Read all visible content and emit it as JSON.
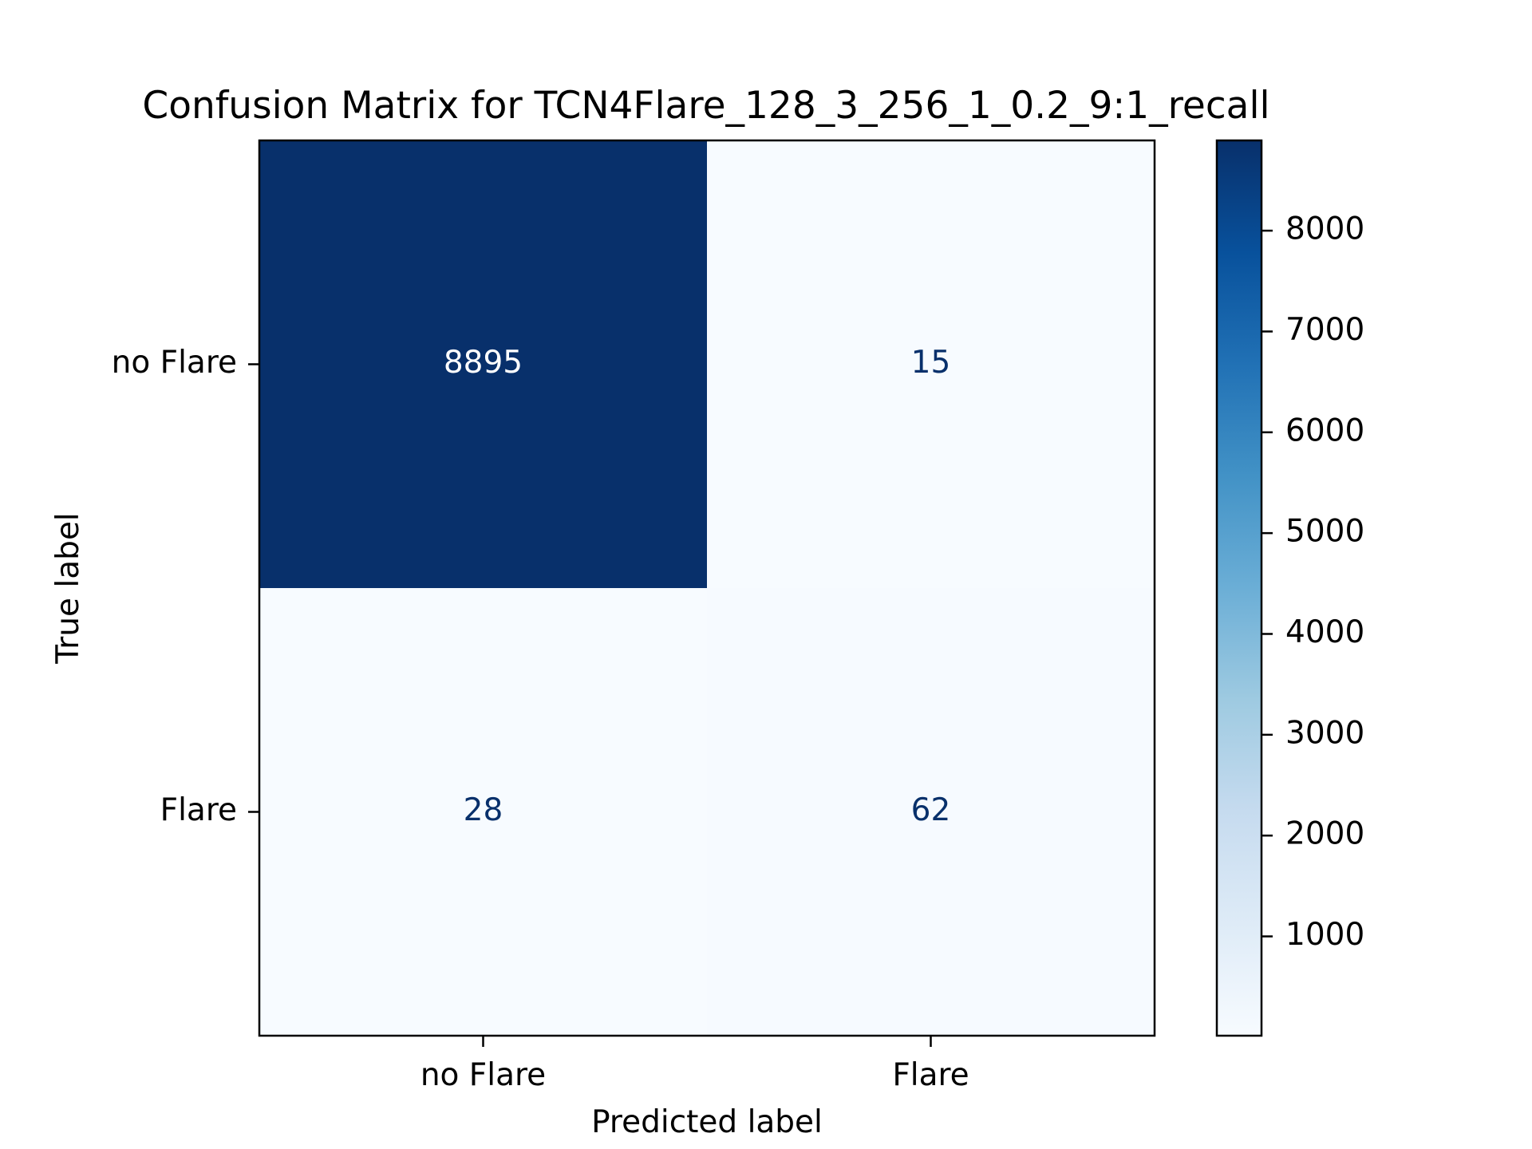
{
  "chart_data": {
    "type": "heatmap",
    "title": "Confusion Matrix for TCN4Flare_128_3_256_1_0.2_9:1_recall",
    "xlabel": "Predicted label",
    "ylabel": "True label",
    "x_categories": [
      "no Flare",
      "Flare"
    ],
    "y_categories": [
      "no Flare",
      "Flare"
    ],
    "values": [
      [
        8895,
        15
      ],
      [
        28,
        62
      ]
    ],
    "colorbar": {
      "colormap": "Blues",
      "range": [
        15,
        8895
      ],
      "ticks": [
        1000,
        2000,
        3000,
        4000,
        5000,
        6000,
        7000,
        8000
      ],
      "tick_labels": [
        "1000",
        "2000",
        "3000",
        "4000",
        "5000",
        "6000",
        "7000",
        "8000"
      ]
    },
    "colors": {
      "low": "#f7fbff",
      "high": "#08306b",
      "text_on_dark": "#ffffff",
      "text_on_light": "#08306b"
    }
  }
}
